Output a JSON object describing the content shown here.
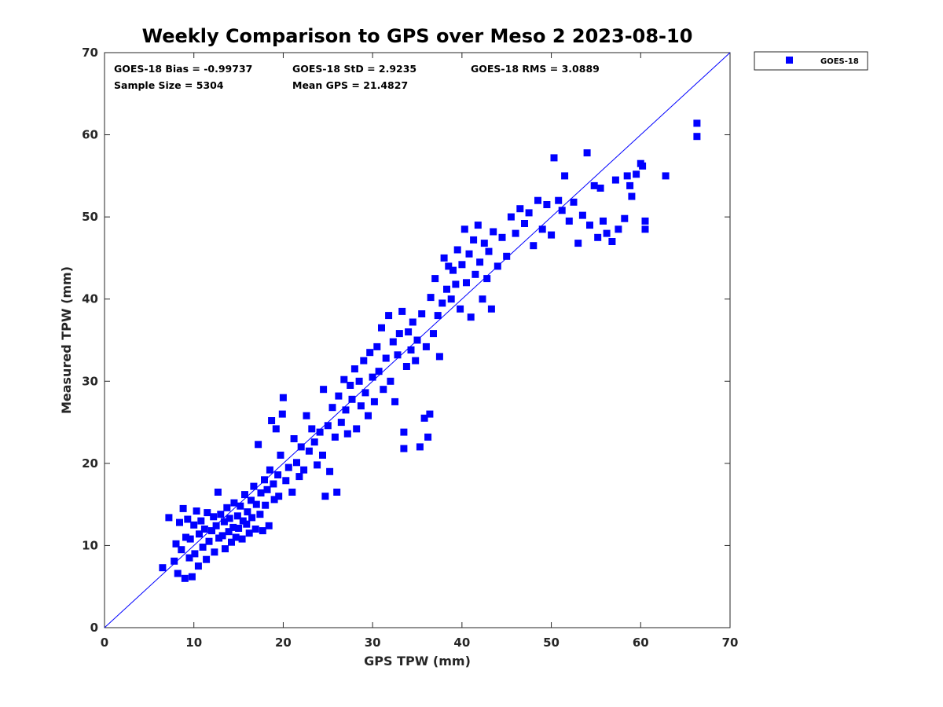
{
  "chart_data": {
    "type": "scatter",
    "title": "Weekly Comparison to GPS over Meso 2 2023-08-10",
    "xlabel": "GPS TPW (mm)",
    "ylabel": "Measured TPW (mm)",
    "xlim": [
      0,
      70
    ],
    "ylim": [
      0,
      70
    ],
    "xticks": [
      "0",
      "10",
      "20",
      "30",
      "40",
      "50",
      "60",
      "70"
    ],
    "yticks": [
      "0",
      "10",
      "20",
      "30",
      "40",
      "50",
      "60",
      "70"
    ],
    "grid": false,
    "legend_position": "outside-top-right",
    "reference_line": {
      "x": [
        0,
        70
      ],
      "y": [
        0,
        70
      ],
      "color": "#0000ff"
    },
    "stats": {
      "bias": "GOES-18 Bias = -0.99737",
      "std": "GOES-18 StD = 2.9235",
      "rms": "GOES-18 RMS = 3.0889",
      "sample_size": "Sample Size = 5304",
      "mean_gps": "Mean GPS = 21.4827"
    },
    "series": [
      {
        "name": "GOES-18",
        "color": "#0000ff",
        "marker": "square",
        "points": [
          [
            6.5,
            7.3
          ],
          [
            7.2,
            13.4
          ],
          [
            7.8,
            8.1
          ],
          [
            8.0,
            10.2
          ],
          [
            8.2,
            6.6
          ],
          [
            8.4,
            12.8
          ],
          [
            8.6,
            9.5
          ],
          [
            8.8,
            14.5
          ],
          [
            9.0,
            6.0
          ],
          [
            9.1,
            11.0
          ],
          [
            9.3,
            13.2
          ],
          [
            9.5,
            8.5
          ],
          [
            9.6,
            10.8
          ],
          [
            9.8,
            6.2
          ],
          [
            10.0,
            12.5
          ],
          [
            10.1,
            9.0
          ],
          [
            10.3,
            14.2
          ],
          [
            10.5,
            7.5
          ],
          [
            10.6,
            11.4
          ],
          [
            10.8,
            13.0
          ],
          [
            11.0,
            9.8
          ],
          [
            11.2,
            12.0
          ],
          [
            11.4,
            8.3
          ],
          [
            11.5,
            14.0
          ],
          [
            11.7,
            10.5
          ],
          [
            12.0,
            11.8
          ],
          [
            12.2,
            13.5
          ],
          [
            12.3,
            9.2
          ],
          [
            12.5,
            12.4
          ],
          [
            12.7,
            16.5
          ],
          [
            12.8,
            10.9
          ],
          [
            13.0,
            13.8
          ],
          [
            13.2,
            11.2
          ],
          [
            13.4,
            12.9
          ],
          [
            13.5,
            9.6
          ],
          [
            13.7,
            14.6
          ],
          [
            13.9,
            11.7
          ],
          [
            14.0,
            13.3
          ],
          [
            14.2,
            10.4
          ],
          [
            14.4,
            12.2
          ],
          [
            14.5,
            15.2
          ],
          [
            14.7,
            11.0
          ],
          [
            14.9,
            13.6
          ],
          [
            15.0,
            12.1
          ],
          [
            15.2,
            14.8
          ],
          [
            15.4,
            10.8
          ],
          [
            15.5,
            13.0
          ],
          [
            15.7,
            16.2
          ],
          [
            15.9,
            12.6
          ],
          [
            16.0,
            14.1
          ],
          [
            16.2,
            11.5
          ],
          [
            16.4,
            15.5
          ],
          [
            16.5,
            13.4
          ],
          [
            16.7,
            17.2
          ],
          [
            16.9,
            12.0
          ],
          [
            17.0,
            15.0
          ],
          [
            17.2,
            22.3
          ],
          [
            17.4,
            13.8
          ],
          [
            17.5,
            16.4
          ],
          [
            17.7,
            11.8
          ],
          [
            17.9,
            18.0
          ],
          [
            18.0,
            14.9
          ],
          [
            18.2,
            16.8
          ],
          [
            18.4,
            12.4
          ],
          [
            18.5,
            19.2
          ],
          [
            18.7,
            25.2
          ],
          [
            18.9,
            17.5
          ],
          [
            19.0,
            15.6
          ],
          [
            19.2,
            24.2
          ],
          [
            19.4,
            18.6
          ],
          [
            19.5,
            16.0
          ],
          [
            19.7,
            21.0
          ],
          [
            19.9,
            26.0
          ],
          [
            20.0,
            28.0
          ],
          [
            20.3,
            17.9
          ],
          [
            20.6,
            19.5
          ],
          [
            21.0,
            16.5
          ],
          [
            21.2,
            23.0
          ],
          [
            21.5,
            20.1
          ],
          [
            21.8,
            18.4
          ],
          [
            22.0,
            22.0
          ],
          [
            22.3,
            19.2
          ],
          [
            22.6,
            25.8
          ],
          [
            22.9,
            21.5
          ],
          [
            23.2,
            24.2
          ],
          [
            23.5,
            22.6
          ],
          [
            23.8,
            19.8
          ],
          [
            24.1,
            23.8
          ],
          [
            24.4,
            21.0
          ],
          [
            24.5,
            29.0
          ],
          [
            24.7,
            16.0
          ],
          [
            25.0,
            24.6
          ],
          [
            25.2,
            19.0
          ],
          [
            25.5,
            26.8
          ],
          [
            25.8,
            23.2
          ],
          [
            26.0,
            16.5
          ],
          [
            26.2,
            28.2
          ],
          [
            26.5,
            25.0
          ],
          [
            26.8,
            30.2
          ],
          [
            27.0,
            26.5
          ],
          [
            27.2,
            23.6
          ],
          [
            27.5,
            29.5
          ],
          [
            27.7,
            27.8
          ],
          [
            28.0,
            31.5
          ],
          [
            28.2,
            24.2
          ],
          [
            28.5,
            30.0
          ],
          [
            28.7,
            27.0
          ],
          [
            29.0,
            32.5
          ],
          [
            29.2,
            28.6
          ],
          [
            29.5,
            25.8
          ],
          [
            29.7,
            33.5
          ],
          [
            30.0,
            30.5
          ],
          [
            30.2,
            27.5
          ],
          [
            30.5,
            34.2
          ],
          [
            30.7,
            31.2
          ],
          [
            31.0,
            36.5
          ],
          [
            31.2,
            29.0
          ],
          [
            31.5,
            32.8
          ],
          [
            31.8,
            38.0
          ],
          [
            32.0,
            30.0
          ],
          [
            32.3,
            34.8
          ],
          [
            32.5,
            27.5
          ],
          [
            32.8,
            33.2
          ],
          [
            33.0,
            35.8
          ],
          [
            33.3,
            38.5
          ],
          [
            33.5,
            23.8
          ],
          [
            33.5,
            21.8
          ],
          [
            33.8,
            31.8
          ],
          [
            34.0,
            36.0
          ],
          [
            34.3,
            33.8
          ],
          [
            34.5,
            37.2
          ],
          [
            34.8,
            32.5
          ],
          [
            35.0,
            35.0
          ],
          [
            35.3,
            22.0
          ],
          [
            35.5,
            38.2
          ],
          [
            35.8,
            25.5
          ],
          [
            36.0,
            34.2
          ],
          [
            36.2,
            23.2
          ],
          [
            36.4,
            26.0
          ],
          [
            36.5,
            40.2
          ],
          [
            36.8,
            35.8
          ],
          [
            37.0,
            42.5
          ],
          [
            37.3,
            38.0
          ],
          [
            37.5,
            33.0
          ],
          [
            37.8,
            39.5
          ],
          [
            38.0,
            45.0
          ],
          [
            38.3,
            41.2
          ],
          [
            38.5,
            44.0
          ],
          [
            38.8,
            40.0
          ],
          [
            39.0,
            43.5
          ],
          [
            39.3,
            41.8
          ],
          [
            39.5,
            46.0
          ],
          [
            39.8,
            38.8
          ],
          [
            40.0,
            44.2
          ],
          [
            40.3,
            48.5
          ],
          [
            40.5,
            42.0
          ],
          [
            40.8,
            45.5
          ],
          [
            41.0,
            37.8
          ],
          [
            41.3,
            47.2
          ],
          [
            41.5,
            43.0
          ],
          [
            41.8,
            49.0
          ],
          [
            42.0,
            44.5
          ],
          [
            42.3,
            40.0
          ],
          [
            42.5,
            46.8
          ],
          [
            42.8,
            42.5
          ],
          [
            43.0,
            45.8
          ],
          [
            43.3,
            38.8
          ],
          [
            43.5,
            48.2
          ],
          [
            44.0,
            44.0
          ],
          [
            44.5,
            47.5
          ],
          [
            45.0,
            45.2
          ],
          [
            45.5,
            50.0
          ],
          [
            46.0,
            48.0
          ],
          [
            46.5,
            51.0
          ],
          [
            47.0,
            49.2
          ],
          [
            47.5,
            50.5
          ],
          [
            48.0,
            46.5
          ],
          [
            48.5,
            52.0
          ],
          [
            49.0,
            48.5
          ],
          [
            49.5,
            51.5
          ],
          [
            50.0,
            47.8
          ],
          [
            50.3,
            57.2
          ],
          [
            50.8,
            52.0
          ],
          [
            51.2,
            50.8
          ],
          [
            51.5,
            55.0
          ],
          [
            52.0,
            49.5
          ],
          [
            52.5,
            51.8
          ],
          [
            53.0,
            46.8
          ],
          [
            53.5,
            50.2
          ],
          [
            54.0,
            57.8
          ],
          [
            54.3,
            49.0
          ],
          [
            54.8,
            53.8
          ],
          [
            55.2,
            47.5
          ],
          [
            55.5,
            53.5
          ],
          [
            55.8,
            49.5
          ],
          [
            56.2,
            48.0
          ],
          [
            56.8,
            47.0
          ],
          [
            57.2,
            54.5
          ],
          [
            57.5,
            48.5
          ],
          [
            58.2,
            49.8
          ],
          [
            58.5,
            55.0
          ],
          [
            58.8,
            53.8
          ],
          [
            59.0,
            52.5
          ],
          [
            59.5,
            55.2
          ],
          [
            60.0,
            56.5
          ],
          [
            60.2,
            56.2
          ],
          [
            60.5,
            49.5
          ],
          [
            60.5,
            48.5
          ],
          [
            62.8,
            55.0
          ],
          [
            66.3,
            61.4
          ],
          [
            66.3,
            59.8
          ]
        ]
      }
    ]
  }
}
